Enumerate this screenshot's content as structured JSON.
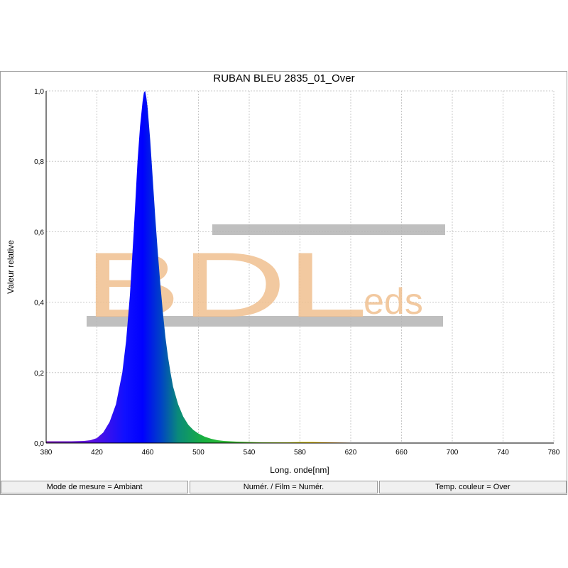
{
  "chart_data": {
    "type": "area",
    "title": "RUBAN BLEU 2835_01_Over",
    "xlabel": "Long. onde[nm]",
    "ylabel": "Valeur relative",
    "xlim": [
      380,
      780
    ],
    "ylim": [
      0,
      1.0
    ],
    "x_ticks": [
      "380",
      "420",
      "460",
      "500",
      "540",
      "580",
      "620",
      "660",
      "700",
      "740",
      "780"
    ],
    "y_ticks": [
      "0,0",
      "0,2",
      "0,4",
      "0,6",
      "0,8",
      "1,0"
    ],
    "grid": true,
    "series": [
      {
        "x": [
          380,
          390,
          400,
          410,
          415,
          420,
          425,
          430,
          435,
          440,
          443,
          446,
          449,
          452,
          454,
          456,
          457,
          458,
          459,
          460,
          462,
          464,
          466,
          468,
          470,
          472,
          474,
          476,
          478,
          480,
          484,
          488,
          492,
          496,
          500,
          505,
          510,
          515,
          520,
          530,
          540,
          550,
          560,
          570,
          580,
          590,
          600,
          620,
          640,
          660,
          700,
          740,
          780
        ],
        "y": [
          0.005,
          0.005,
          0.005,
          0.006,
          0.008,
          0.014,
          0.03,
          0.06,
          0.11,
          0.2,
          0.29,
          0.42,
          0.6,
          0.8,
          0.9,
          0.97,
          0.995,
          1.0,
          0.98,
          0.95,
          0.86,
          0.75,
          0.64,
          0.54,
          0.45,
          0.37,
          0.3,
          0.245,
          0.2,
          0.16,
          0.11,
          0.075,
          0.052,
          0.037,
          0.027,
          0.018,
          0.012,
          0.008,
          0.006,
          0.004,
          0.003,
          0.002,
          0.002,
          0.002,
          0.003,
          0.003,
          0.002,
          0.001,
          0.0,
          0.0,
          0.0,
          0.0,
          0.0
        ]
      }
    ]
  },
  "watermark": {
    "big": "BDL",
    "small": "eds",
    "color": "#f0c090",
    "bar_color": "#b4b4b4"
  },
  "status_bar": {
    "mode": "Mode de mesure = Ambiant",
    "numer": "Numér. / Film = Numér.",
    "temp": "Temp. couleur = Over"
  }
}
